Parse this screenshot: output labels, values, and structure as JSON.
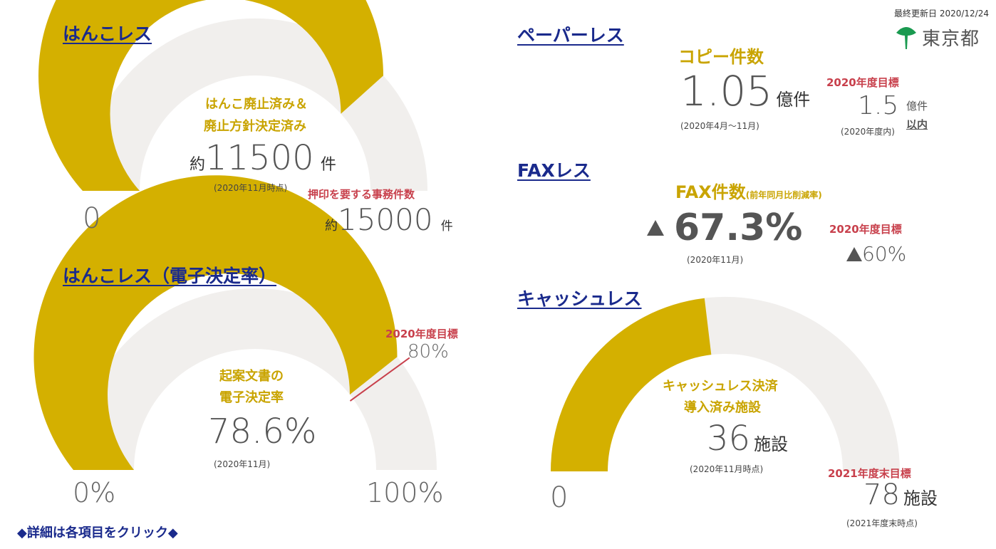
{
  "header": {
    "updated_label": "最終更新日",
    "updated_date": "2020/12/24",
    "logo_text": "東京都",
    "logo_color": "#1a9a50"
  },
  "colors": {
    "gold": "#d4b000",
    "track": "#f1efed",
    "title": "#1a2a8c",
    "red": "#c8404c"
  },
  "hanko": {
    "title": "はんこレス",
    "desc_line1": "はんこ廃止済み＆",
    "desc_line2": "廃止方針決定済み",
    "value_prefix": "約",
    "value": "11500",
    "unit": "件",
    "note": "(2020年11月時点)",
    "fill_fraction": 0.767,
    "min_label": "0",
    "target_label": "押印を要する事務件数",
    "target_prefix": "約",
    "target_value": "15000",
    "target_unit": "件"
  },
  "hanko_e": {
    "title": "はんこレス（電子決定率）",
    "desc_line1": "起案文書の",
    "desc_line2": "電子決定率",
    "value": "78.6%",
    "note": "(2020年11月)",
    "fill_fraction": 0.786,
    "target_fraction": 0.8,
    "target_title": "2020年度目標",
    "target_value": "80%",
    "min_label": "0%",
    "max_label": "100%"
  },
  "paperless": {
    "title": "ペーパーレス",
    "metric": "コピー件数",
    "value": "1.05",
    "unit": "億件",
    "note": "(2020年4月～11月)",
    "target_title": "2020年度目標",
    "target_value": "1.5",
    "target_unit": "億件",
    "target_suffix": "以内",
    "target_note": "(2020年度内)"
  },
  "fax": {
    "title": "FAXレス",
    "metric": "FAX件数",
    "metric_sub": "(前年同月比削減率)",
    "value": "67.3%",
    "note": "(2020年11月)",
    "target_title": "2020年度目標",
    "target_value": "60%"
  },
  "cashless": {
    "title": "キャッシュレス",
    "desc_line1": "キャッシュレス決済",
    "desc_line2": "導入済み施設",
    "value": "36",
    "unit": "施設",
    "note": "(2020年11月時点)",
    "fill_fraction": 0.462,
    "min_label": "0",
    "target_title": "2021年度末目標",
    "target_value": "78",
    "target_unit": "施設",
    "target_note": "(2021年度末時点)"
  },
  "footer": {
    "link_text": "◆詳細は各項目をクリック◆"
  }
}
